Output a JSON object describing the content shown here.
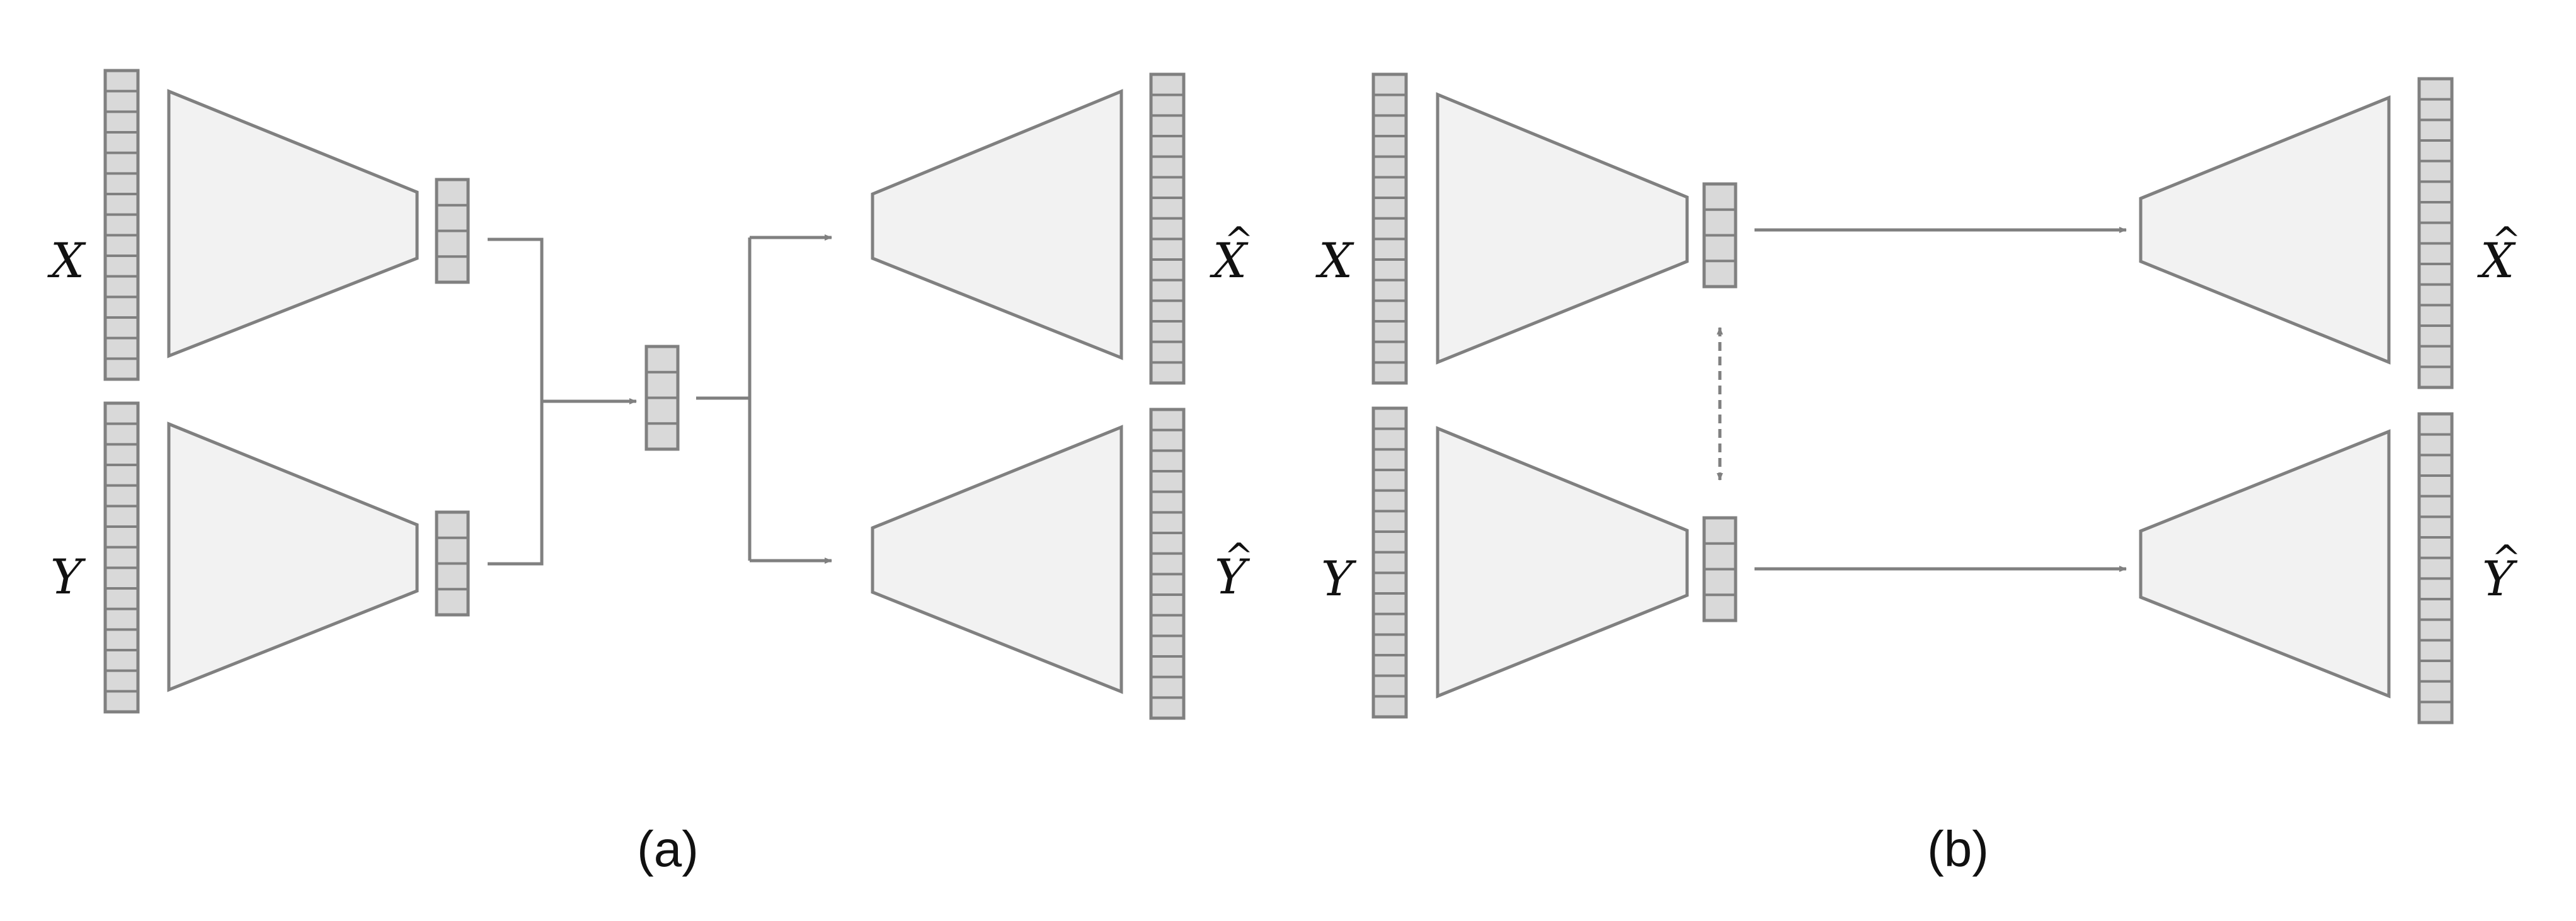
{
  "diagram": {
    "colors": {
      "stroke": "#808080",
      "trapezoid_fill": "#f2f2f2",
      "vector_fill": "#d9d9d9",
      "text": "#111111"
    },
    "panel_a": {
      "caption": "(a)",
      "inputs": [
        "X",
        "Y"
      ],
      "outputs": [
        "X",
        "Y"
      ],
      "output_hat": "^",
      "input_cells": 15,
      "latent_cells": 4,
      "shared_latent_cells": 4
    },
    "panel_b": {
      "caption": "(b)",
      "inputs": [
        "X",
        "Y"
      ],
      "outputs": [
        "X",
        "Y"
      ],
      "output_hat": "^",
      "input_cells": 15,
      "latent_cells": 4
    }
  }
}
